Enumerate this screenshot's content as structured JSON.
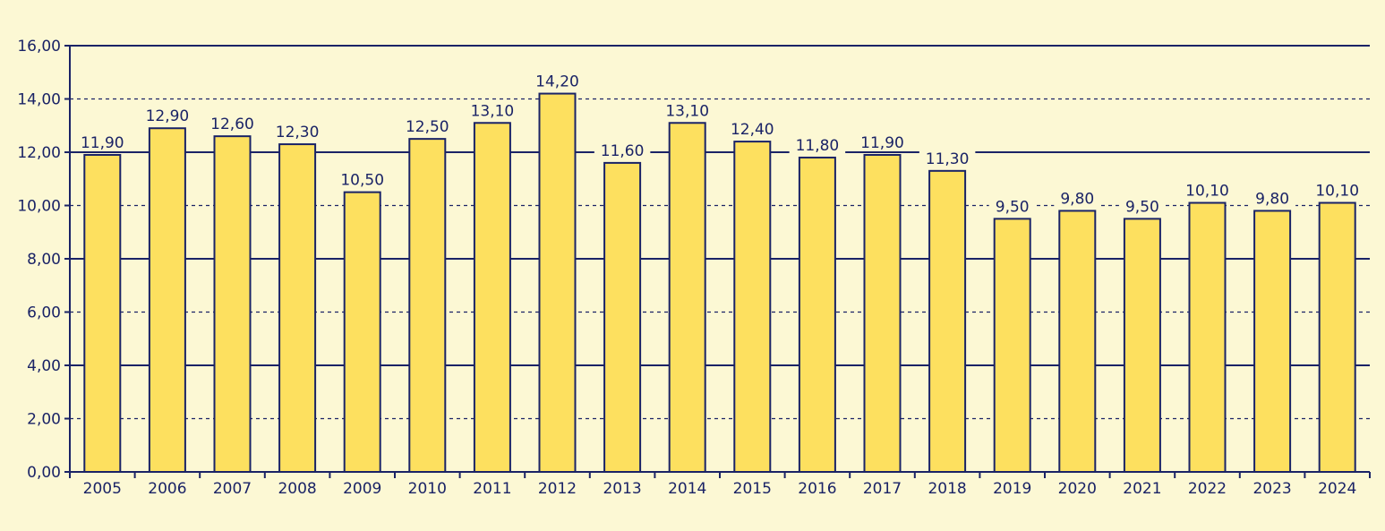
{
  "chart_data": {
    "type": "bar",
    "title": "",
    "xlabel": "",
    "ylabel": "",
    "categories": [
      "2005",
      "2006",
      "2007",
      "2008",
      "2009",
      "2010",
      "2011",
      "2012",
      "2013",
      "2014",
      "2015",
      "2016",
      "2017",
      "2018",
      "2019",
      "2020",
      "2021",
      "2022",
      "2023",
      "2024"
    ],
    "values": [
      11.9,
      12.9,
      12.6,
      12.3,
      10.5,
      12.5,
      13.1,
      14.2,
      11.6,
      13.1,
      12.4,
      11.8,
      11.9,
      11.3,
      9.5,
      9.8,
      9.5,
      10.1,
      9.8,
      10.1
    ],
    "value_labels": [
      "11,90",
      "12,90",
      "12,60",
      "12,30",
      "10,50",
      "12,50",
      "13,10",
      "14,20",
      "11,60",
      "13,10",
      "12,40",
      "11,80",
      "11,90",
      "11,30",
      "9,50",
      "9,80",
      "9,50",
      "10,10",
      "9,80",
      "10,10"
    ],
    "ylim": [
      0,
      16
    ],
    "yticks": [
      0,
      2,
      4,
      6,
      8,
      10,
      12,
      14,
      16
    ],
    "ytick_labels": [
      "0,00",
      "2,00",
      "4,00",
      "6,00",
      "8,00",
      "10,00",
      "12,00",
      "14,00",
      "16,00"
    ],
    "grid": true,
    "legend": "none",
    "colors": {
      "background": "#fcf8d4",
      "bar_fill": "#fde05f",
      "bar_stroke": "#1a2366",
      "axis": "#1a2366",
      "grid": "#1a2366",
      "text": "#1a2366"
    }
  }
}
